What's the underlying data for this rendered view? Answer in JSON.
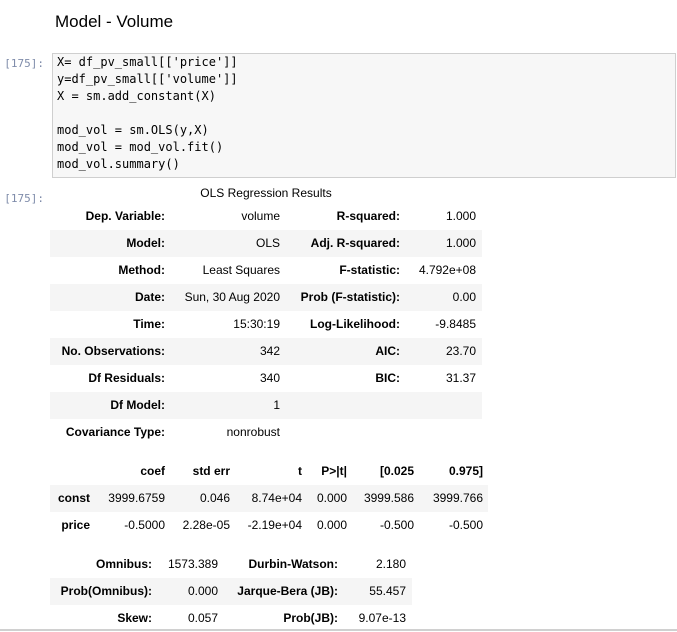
{
  "heading": "Model - Volume",
  "input_prompt": "[175]:",
  "code": [
    [
      "X= df_pv_small[['price']]",
      "y=df_pv_small[['volume']]",
      "X = sm.add_constant(X)"
    ],
    [
      "mod_vol = sm.OLS(y,X)",
      "mod_vol = mod_vol.fit()",
      "mod_vol.summary()"
    ]
  ],
  "output_prompt": "[175]:",
  "summary": {
    "title": "OLS Regression Results",
    "table1": [
      [
        "Dep. Variable:",
        "volume",
        "R-squared:",
        "1.000"
      ],
      [
        "Model:",
        "OLS",
        "Adj. R-squared:",
        "1.000"
      ],
      [
        "Method:",
        "Least Squares",
        "F-statistic:",
        "4.792e+08"
      ],
      [
        "Date:",
        "Sun, 30 Aug 2020",
        "Prob (F-statistic):",
        "0.00"
      ],
      [
        "Time:",
        "15:30:19",
        "Log-Likelihood:",
        "-9.8485"
      ],
      [
        "No. Observations:",
        "342",
        "AIC:",
        "23.70"
      ],
      [
        "Df Residuals:",
        "340",
        "BIC:",
        "31.37"
      ],
      [
        "Df Model:",
        "1"
      ],
      [
        "Covariance Type:",
        "nonrobust"
      ]
    ],
    "table2": {
      "header": [
        "coef",
        "std err",
        "t",
        "P>|t|",
        "[0.025",
        "0.975]"
      ],
      "rows": [
        [
          "const",
          "3999.6759",
          "0.046",
          "8.74e+04",
          "0.000",
          "3999.586",
          "3999.766"
        ],
        [
          "price",
          "-0.5000",
          "2.28e-05",
          "-2.19e+04",
          "0.000",
          "-0.500",
          "-0.500"
        ]
      ]
    },
    "table3": [
      [
        "Omnibus:",
        "1573.389",
        "Durbin-Watson:",
        "2.180"
      ],
      [
        "Prob(Omnibus):",
        "0.000",
        "Jarque-Bera (JB):",
        "55.457"
      ],
      [
        "Skew:",
        "0.057",
        "Prob(JB):",
        "9.07e-13"
      ]
    ]
  }
}
